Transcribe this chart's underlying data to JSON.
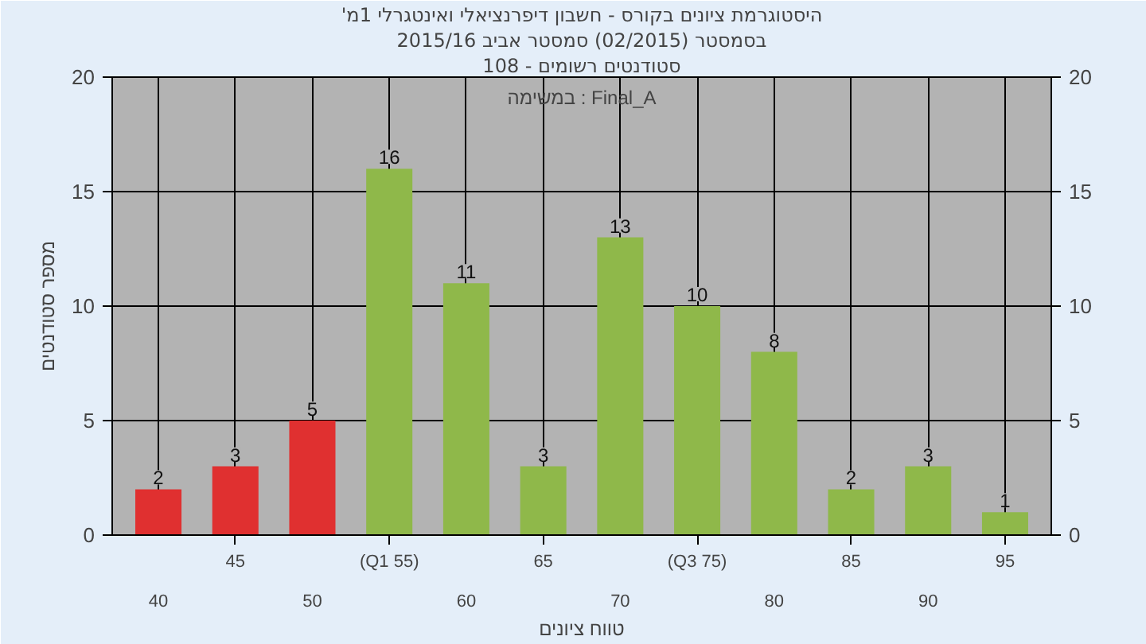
{
  "chart_data": {
    "type": "bar",
    "title": "'היסטוגרמת ציונים בקורס - חשבון דיפרנציאלי ואינטגרלי 1מ",
    "subtitle": "בסמסטר (02/2015) סמסטר אביב 2015/16",
    "xlabel": "טווח ציונים",
    "ylabel": "מספר סטודנטים",
    "annotations": [
      "סטודנטים רשומים - 108",
      "במשימה : Final_A"
    ],
    "categories": [
      "40",
      "45",
      "50",
      "(Q1 55)",
      "60",
      "65",
      "70",
      "(Q3 75)",
      "80",
      "85",
      "90",
      "95"
    ],
    "series": [
      {
        "colors": [
          "#e03030",
          "#e03030",
          "#e03030",
          "#8fb84a",
          "#8fb84a",
          "#8fb84a",
          "#8fb84a",
          "#8fb84a",
          "#8fb84a",
          "#8fb84a",
          "#8fb84a",
          "#8fb84a"
        ],
        "values": [
          2,
          3,
          5,
          16,
          11,
          3,
          13,
          10,
          8,
          2,
          3,
          1
        ]
      }
    ],
    "ylim": [
      0,
      20
    ],
    "yticks": [
      0,
      5,
      10,
      15,
      20
    ],
    "y2lim": [
      0,
      20
    ],
    "y2ticks": [
      0,
      5,
      10,
      15,
      20
    ],
    "data_labels": true,
    "grid": true
  }
}
